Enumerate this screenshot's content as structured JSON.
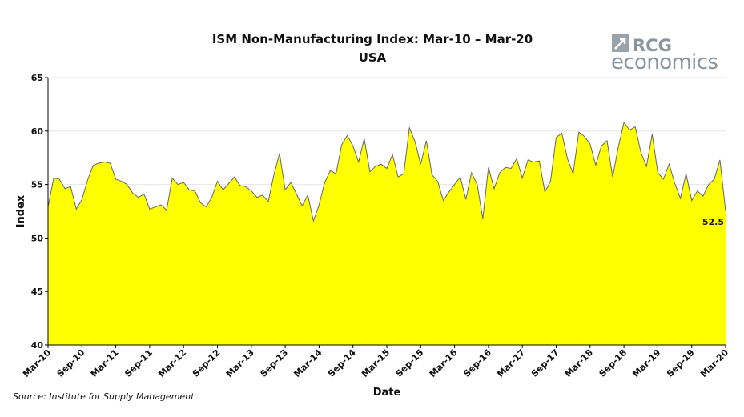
{
  "chart_data": {
    "type": "area",
    "title": "ISM Non-Manufacturing Index: Mar-10 – Mar-20",
    "subtitle": "USA",
    "x_label": "Date",
    "y_label": "Index",
    "source": "Source: Institute for Supply Management",
    "logo": {
      "brand": "RCG",
      "name": "economics"
    },
    "categories": [
      "Mar-10",
      null,
      null,
      null,
      null,
      null,
      "Sep-10",
      null,
      null,
      null,
      null,
      null,
      "Mar-11",
      null,
      null,
      null,
      null,
      null,
      "Sep-11",
      null,
      null,
      null,
      null,
      null,
      "Mar-12",
      null,
      null,
      null,
      null,
      null,
      "Sep-12",
      null,
      null,
      null,
      null,
      null,
      "Mar-13",
      null,
      null,
      null,
      null,
      null,
      "Sep-13",
      null,
      null,
      null,
      null,
      null,
      "Mar-14",
      null,
      null,
      null,
      null,
      null,
      "Sep-14",
      null,
      null,
      null,
      null,
      null,
      "Mar-15",
      null,
      null,
      null,
      null,
      null,
      "Sep-15",
      null,
      null,
      null,
      null,
      null,
      "Mar-16",
      null,
      null,
      null,
      null,
      null,
      "Sep-16",
      null,
      null,
      null,
      null,
      null,
      "Mar-17",
      null,
      null,
      null,
      null,
      null,
      "Sep-17",
      null,
      null,
      null,
      null,
      null,
      "Mar-18",
      null,
      null,
      null,
      null,
      null,
      "Sep-18",
      null,
      null,
      null,
      null,
      null,
      "Mar-19",
      null,
      null,
      null,
      null,
      null,
      "Sep-19",
      null,
      null,
      null,
      null,
      null,
      "Mar-20"
    ],
    "values": [
      52.9,
      55.6,
      55.5,
      54.6,
      54.8,
      52.7,
      53.6,
      55.4,
      56.8,
      57.0,
      57.1,
      57.0,
      55.5,
      55.3,
      55.0,
      54.2,
      53.8,
      54.1,
      52.7,
      52.9,
      53.1,
      52.6,
      55.6,
      55.0,
      55.2,
      54.5,
      54.4,
      53.3,
      52.9,
      53.8,
      55.3,
      54.5,
      55.1,
      55.7,
      54.9,
      54.8,
      54.4,
      53.8,
      54.0,
      53.4,
      55.9,
      57.9,
      54.5,
      55.2,
      54.1,
      53.0,
      54.0,
      51.6,
      53.1,
      55.2,
      56.3,
      56.0,
      58.7,
      59.6,
      58.6,
      57.1,
      59.3,
      56.2,
      56.7,
      56.9,
      56.5,
      57.8,
      55.7,
      56.0,
      60.3,
      59.0,
      56.9,
      59.1,
      55.9,
      55.3,
      53.5,
      54.3,
      55.0,
      55.7,
      53.6,
      56.1,
      55.0,
      51.8,
      56.6,
      54.6,
      56.1,
      56.6,
      56.5,
      57.4,
      55.6,
      57.3,
      57.1,
      57.2,
      54.3,
      55.3,
      59.4,
      59.8,
      57.4,
      56.0,
      59.9,
      59.5,
      58.8,
      56.8,
      58.6,
      59.1,
      55.7,
      58.5,
      60.8,
      60.1,
      60.4,
      58.0,
      56.7,
      59.7,
      56.1,
      55.5,
      56.9,
      55.1,
      53.7,
      56.0,
      53.5,
      54.4,
      53.9,
      55.0,
      55.5,
      57.3,
      52.5
    ],
    "color": "#ffff00",
    "line_color": "#666666",
    "data_label": "last",
    "ylim": [
      40,
      65
    ],
    "yticks": [
      40,
      45,
      50,
      55,
      60,
      65
    ],
    "grid": true
  }
}
